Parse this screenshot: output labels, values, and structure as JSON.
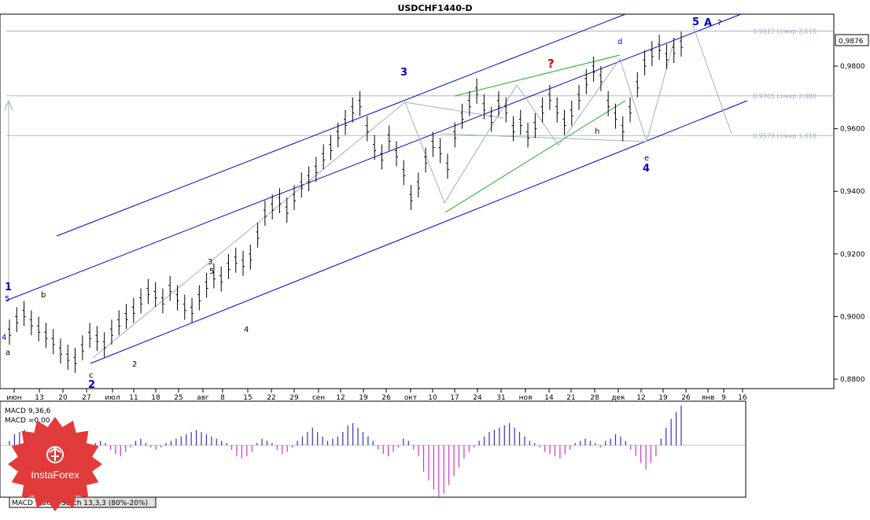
{
  "chart_data": {
    "type": "candlestick",
    "title": "USDCHF1440-D",
    "price_axis": {
      "ticks": [
        "0,9800",
        "0,9600",
        "0,9400",
        "0,9200",
        "0,9000",
        "0,8800"
      ],
      "tick_values": [
        0.98,
        0.96,
        0.94,
        0.92,
        0.9,
        0.88
      ],
      "current_price": "0,9876",
      "current_value": 0.9876
    },
    "time_axis": {
      "ticks": [
        "июн",
        "13",
        "20",
        "27",
        "июл",
        "11",
        "18",
        "25",
        "авг",
        "8",
        "15",
        "22",
        "29",
        "сен",
        "12",
        "19",
        "26",
        "окт",
        "10",
        "17",
        "24",
        "31",
        "ноя",
        "14",
        "21",
        "28",
        "дек",
        "12",
        "19",
        "26",
        "янв",
        "9",
        "16"
      ]
    },
    "fib_levels": [
      {
        "label": "0,9912 LHexp 2,618",
        "value": 0.9912
      },
      {
        "label": "0,9705 LHexp 2,000",
        "value": 0.9705
      },
      {
        "label": "0,9578 LHexp 1,618",
        "value": 0.9578
      }
    ],
    "macd": {
      "label": "MACD 9,36,6",
      "value_label": "MACD =0,00",
      "histogram": [
        0.2,
        0.5,
        0.6,
        0.7,
        0.6,
        0.5,
        0.3,
        0.2,
        0.1,
        -0.1,
        -0.3,
        -0.5,
        -0.6,
        -0.7,
        -0.8,
        -0.6,
        -0.3,
        0.1,
        0.2,
        0.1,
        -0.2,
        -0.4,
        -0.5,
        -0.3,
        -0.1,
        0.2,
        0.3,
        0.1,
        -0.1,
        -0.2,
        -0.1,
        0.1,
        0.2,
        0.3,
        0.4,
        0.5,
        0.6,
        0.7,
        0.6,
        0.5,
        0.4,
        0.3,
        0.2,
        0.1,
        -0.2,
        -0.5,
        -0.6,
        -0.5,
        -0.3,
        0.1,
        0.3,
        0.2,
        0.1,
        -0.2,
        -0.4,
        -0.3,
        -0.1,
        0.2,
        0.4,
        0.6,
        0.8,
        0.6,
        0.4,
        0.2,
        0.3,
        0.4,
        0.6,
        0.9,
        1.0,
        0.8,
        0.6,
        0.4,
        0.2,
        -0.2,
        -0.4,
        -0.5,
        -0.3,
        -0.1,
        0.3,
        0.2,
        -0.2,
        -0.5,
        -1.2,
        -1.6,
        -2.0,
        -2.4,
        -2.2,
        -1.8,
        -1.4,
        -1.0,
        -0.6,
        -0.3,
        -0.1,
        0.2,
        0.4,
        0.6,
        0.7,
        0.8,
        0.9,
        1.0,
        0.8,
        0.6,
        0.4,
        0.2,
        0.1,
        -0.1,
        -0.3,
        -0.4,
        -0.5,
        -0.6,
        -0.4,
        -0.2,
        0.1,
        0.2,
        0.3,
        0.2,
        0.1,
        -0.1,
        0.2,
        0.3,
        0.5,
        0.4,
        0.2,
        -0.2,
        -0.5,
        -0.8,
        -1.1,
        -0.8,
        -0.5,
        0.3,
        0.8,
        1.2,
        1.5,
        1.8
      ]
    },
    "indicator_tabs": [
      "MACD 9,36,6",
      "Stoch 13,3,3 (80%-20%)"
    ],
    "wave_labels": [
      {
        "text": "1",
        "color": "blue",
        "size": "big"
      },
      {
        "text": "5",
        "color": "blue"
      },
      {
        "text": "4",
        "color": "blue"
      },
      {
        "text": "a",
        "color": "black"
      },
      {
        "text": "b",
        "color": "black"
      },
      {
        "text": "c",
        "color": "black"
      },
      {
        "text": "2",
        "color": "black"
      },
      {
        "text": "3",
        "color": "black"
      },
      {
        "text": "4",
        "color": "black"
      },
      {
        "text": "5",
        "color": "black"
      },
      {
        "text": "2",
        "color": "blue",
        "size": "big"
      },
      {
        "text": "3",
        "color": "blue",
        "size": "big"
      },
      {
        "text": "4",
        "color": "blue",
        "size": "big"
      },
      {
        "text": "5",
        "color": "blue",
        "size": "big"
      },
      {
        "text": "A",
        "color": "blue",
        "size": "big"
      },
      {
        "text": "?",
        "color": "black"
      },
      {
        "text": "?",
        "color": "red"
      },
      {
        "text": "d",
        "color": "blue"
      },
      {
        "text": "e",
        "color": "blue"
      },
      {
        "text": "h",
        "color": "black"
      }
    ]
  },
  "brand": {
    "name": "InstaForex",
    "colors": {
      "badge": "#e23b3b",
      "up_line": "#000000",
      "channel": "#0000cc",
      "trend_green": "#22aa22",
      "fib": "#9ab0c8",
      "macd_pos": "#3030c0",
      "macd_neg": "#cc33cc"
    }
  }
}
